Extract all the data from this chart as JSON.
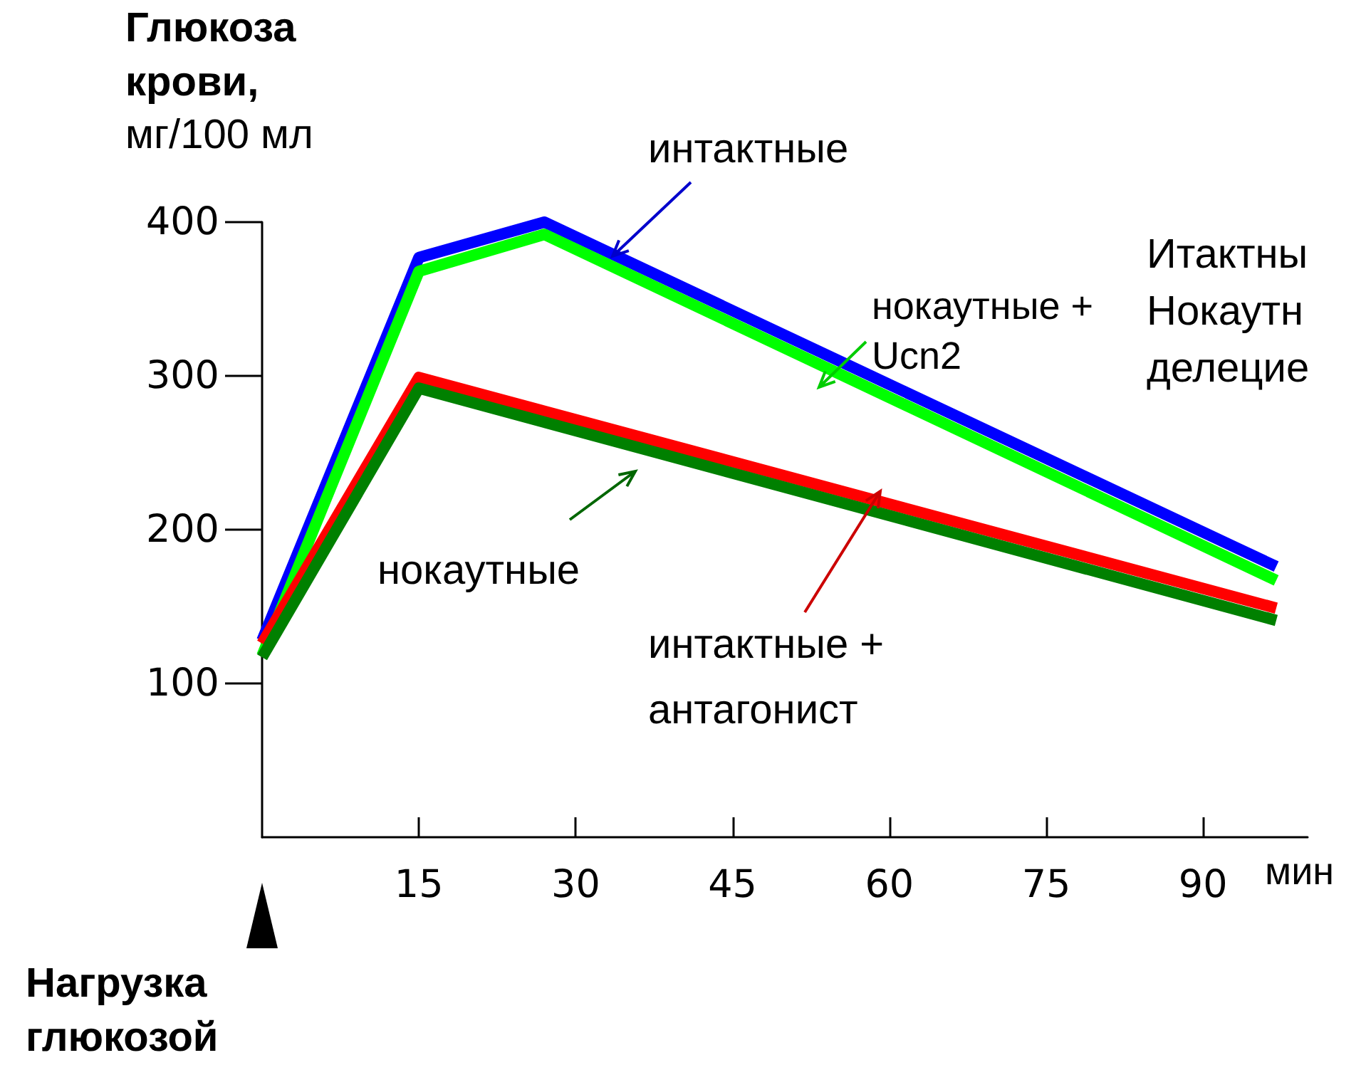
{
  "chart_data": {
    "type": "line",
    "ylabel": "Глюкоза крови, мг/100 мл",
    "xlabel": "мин",
    "xlim": [
      0,
      100
    ],
    "xticks": [
      15,
      30,
      45,
      60,
      75,
      90
    ],
    "ylim": [
      0,
      400
    ],
    "yticks": [
      100,
      200,
      300,
      400
    ],
    "grid": false,
    "series": [
      {
        "name": "интактные",
        "color": "#0000ff",
        "x": [
          0,
          15,
          27,
          97
        ],
        "values": [
          128,
          377,
          400,
          176
        ]
      },
      {
        "name": "нокаутные + Ucn2",
        "color": "#00ff00",
        "x": [
          0,
          15,
          27,
          97
        ],
        "values": [
          118,
          368,
          392,
          167
        ]
      },
      {
        "name": "интактные + антагонист",
        "color": "#ff0000",
        "x": [
          0,
          15,
          97
        ],
        "values": [
          126,
          299,
          149
        ]
      },
      {
        "name": "нокаутные",
        "color": "#008000",
        "x": [
          0,
          15,
          97
        ],
        "values": [
          117,
          292,
          141
        ]
      }
    ],
    "annotations": [
      "Нагрузка глюкозой",
      "Итактны",
      "Нокаутн",
      "делецие"
    ]
  }
}
